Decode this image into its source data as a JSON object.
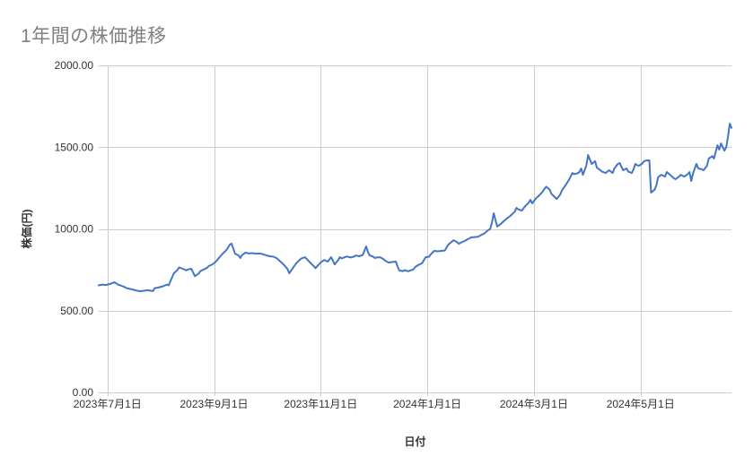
{
  "colors": {
    "background": "#ffffff",
    "title_text": "#808080",
    "axis_text": "#333333",
    "gridline": "#cccccc",
    "series_line": "#4575c6"
  },
  "chart_data": {
    "type": "line",
    "title": "1年間の株価推移",
    "xlabel": "日付",
    "ylabel": "株価(円)",
    "legend": "none",
    "grid": true,
    "ylim": [
      0,
      2000
    ],
    "y_ticks": [
      {
        "v": 0,
        "label": "0.00"
      },
      {
        "v": 500,
        "label": "500.00"
      },
      {
        "v": 1000,
        "label": "1000.00"
      },
      {
        "v": 1500,
        "label": "1500.00"
      },
      {
        "v": 2000,
        "label": "2000.00"
      }
    ],
    "x_range_days": [
      0,
      362
    ],
    "x_ticks": [
      {
        "day": 5,
        "label": "2023年7月1日"
      },
      {
        "day": 66,
        "label": "2023年9月1日"
      },
      {
        "day": 127,
        "label": "2023年11月1日"
      },
      {
        "day": 188,
        "label": "2024年1月1日"
      },
      {
        "day": 249,
        "label": "2024年3月1日"
      },
      {
        "day": 310,
        "label": "2024年5月1日"
      }
    ],
    "series": [
      {
        "name": "株価",
        "color": "#4575c6",
        "points_day_value": [
          [
            0,
            655
          ],
          [
            2,
            660
          ],
          [
            4,
            657
          ],
          [
            7,
            665
          ],
          [
            9,
            674
          ],
          [
            11,
            660
          ],
          [
            14,
            648
          ],
          [
            16,
            638
          ],
          [
            19,
            630
          ],
          [
            22,
            622
          ],
          [
            24,
            619
          ],
          [
            26,
            622
          ],
          [
            28,
            625
          ],
          [
            31,
            620
          ],
          [
            32,
            638
          ],
          [
            34,
            641
          ],
          [
            37,
            650
          ],
          [
            39,
            660
          ],
          [
            40,
            655
          ],
          [
            43,
            729
          ],
          [
            45,
            748
          ],
          [
            46,
            765
          ],
          [
            48,
            756
          ],
          [
            50,
            747
          ],
          [
            51,
            752
          ],
          [
            53,
            756
          ],
          [
            55,
            711
          ],
          [
            57,
            725
          ],
          [
            58,
            740
          ],
          [
            60,
            752
          ],
          [
            62,
            762
          ],
          [
            63,
            773
          ],
          [
            65,
            783
          ],
          [
            67,
            800
          ],
          [
            69,
            825
          ],
          [
            71,
            850
          ],
          [
            73,
            870
          ],
          [
            75,
            904
          ],
          [
            76,
            910
          ],
          [
            78,
            849
          ],
          [
            80,
            838
          ],
          [
            81,
            822
          ],
          [
            82,
            840
          ],
          [
            84,
            855
          ],
          [
            86,
            850
          ],
          [
            88,
            852
          ],
          [
            90,
            848
          ],
          [
            92,
            850
          ],
          [
            94,
            845
          ],
          [
            96,
            838
          ],
          [
            98,
            833
          ],
          [
            100,
            830
          ],
          [
            102,
            820
          ],
          [
            104,
            800
          ],
          [
            106,
            780
          ],
          [
            108,
            755
          ],
          [
            109,
            729
          ],
          [
            111,
            760
          ],
          [
            113,
            790
          ],
          [
            115,
            811
          ],
          [
            116,
            820
          ],
          [
            118,
            827
          ],
          [
            120,
            805
          ],
          [
            122,
            783
          ],
          [
            123,
            773
          ],
          [
            124,
            760
          ],
          [
            126,
            783
          ],
          [
            127,
            795
          ],
          [
            129,
            810
          ],
          [
            131,
            800
          ],
          [
            133,
            827
          ],
          [
            134,
            805
          ],
          [
            135,
            783
          ],
          [
            137,
            810
          ],
          [
            138,
            827
          ],
          [
            139,
            820
          ],
          [
            141,
            828
          ],
          [
            142,
            832
          ],
          [
            144,
            825
          ],
          [
            146,
            830
          ],
          [
            147,
            838
          ],
          [
            149,
            833
          ],
          [
            151,
            840
          ],
          [
            153,
            893
          ],
          [
            154,
            860
          ],
          [
            155,
            838
          ],
          [
            157,
            830
          ],
          [
            158,
            822
          ],
          [
            159,
            825
          ],
          [
            161,
            827
          ],
          [
            163,
            815
          ],
          [
            164,
            805
          ],
          [
            166,
            794
          ],
          [
            168,
            798
          ],
          [
            170,
            800
          ],
          [
            171,
            770
          ],
          [
            172,
            745
          ],
          [
            174,
            742
          ],
          [
            175,
            748
          ],
          [
            177,
            741
          ],
          [
            178,
            745
          ],
          [
            180,
            752
          ],
          [
            181,
            767
          ],
          [
            183,
            780
          ],
          [
            185,
            790
          ],
          [
            187,
            827
          ],
          [
            189,
            830
          ],
          [
            190,
            845
          ],
          [
            192,
            866
          ],
          [
            194,
            863
          ],
          [
            196,
            866
          ],
          [
            198,
            868
          ],
          [
            200,
            904
          ],
          [
            203,
            931
          ],
          [
            205,
            920
          ],
          [
            206,
            909
          ],
          [
            207,
            915
          ],
          [
            208,
            920
          ],
          [
            210,
            930
          ],
          [
            211,
            937
          ],
          [
            212,
            942
          ],
          [
            213,
            948
          ],
          [
            215,
            950
          ],
          [
            217,
            952
          ],
          [
            219,
            964
          ],
          [
            221,
            975
          ],
          [
            222,
            986
          ],
          [
            224,
            1000
          ],
          [
            225,
            1040
          ],
          [
            226,
            1096
          ],
          [
            228,
            1014
          ],
          [
            229,
            1022
          ],
          [
            230,
            1030
          ],
          [
            232,
            1050
          ],
          [
            234,
            1068
          ],
          [
            235,
            1075
          ],
          [
            236,
            1085
          ],
          [
            238,
            1105
          ],
          [
            239,
            1129
          ],
          [
            240,
            1120
          ],
          [
            242,
            1112
          ],
          [
            243,
            1125
          ],
          [
            244,
            1140
          ],
          [
            246,
            1160
          ],
          [
            247,
            1178
          ],
          [
            248,
            1156
          ],
          [
            250,
            1185
          ],
          [
            252,
            1205
          ],
          [
            254,
            1228
          ],
          [
            255,
            1245
          ],
          [
            256,
            1258
          ],
          [
            258,
            1240
          ],
          [
            259,
            1215
          ],
          [
            261,
            1194
          ],
          [
            262,
            1183
          ],
          [
            264,
            1210
          ],
          [
            265,
            1235
          ],
          [
            267,
            1266
          ],
          [
            269,
            1300
          ],
          [
            271,
            1342
          ],
          [
            272,
            1335
          ],
          [
            274,
            1340
          ],
          [
            275,
            1348
          ],
          [
            276,
            1370
          ],
          [
            277,
            1331
          ],
          [
            279,
            1390
          ],
          [
            280,
            1452
          ],
          [
            282,
            1397
          ],
          [
            283,
            1405
          ],
          [
            284,
            1414
          ],
          [
            285,
            1375
          ],
          [
            287,
            1359
          ],
          [
            288,
            1350
          ],
          [
            290,
            1342
          ],
          [
            292,
            1359
          ],
          [
            294,
            1342
          ],
          [
            295,
            1370
          ],
          [
            297,
            1397
          ],
          [
            298,
            1403
          ],
          [
            300,
            1359
          ],
          [
            302,
            1370
          ],
          [
            303,
            1350
          ],
          [
            305,
            1342
          ],
          [
            306,
            1365
          ],
          [
            307,
            1397
          ],
          [
            308,
            1390
          ],
          [
            309,
            1386
          ],
          [
            311,
            1400
          ],
          [
            312,
            1414
          ],
          [
            314,
            1419
          ],
          [
            315,
            1419
          ],
          [
            316,
            1222
          ],
          [
            318,
            1240
          ],
          [
            319,
            1266
          ],
          [
            320,
            1315
          ],
          [
            321,
            1325
          ],
          [
            322,
            1331
          ],
          [
            324,
            1320
          ],
          [
            325,
            1348
          ],
          [
            327,
            1330
          ],
          [
            328,
            1320
          ],
          [
            329,
            1310
          ],
          [
            330,
            1304
          ],
          [
            332,
            1320
          ],
          [
            333,
            1331
          ],
          [
            334,
            1325
          ],
          [
            335,
            1320
          ],
          [
            337,
            1335
          ],
          [
            338,
            1348
          ],
          [
            339,
            1293
          ],
          [
            340,
            1340
          ],
          [
            342,
            1397
          ],
          [
            343,
            1370
          ],
          [
            345,
            1365
          ],
          [
            346,
            1359
          ],
          [
            348,
            1386
          ],
          [
            349,
            1430
          ],
          [
            351,
            1445
          ],
          [
            352,
            1430
          ],
          [
            354,
            1512
          ],
          [
            355,
            1485
          ],
          [
            356,
            1523
          ],
          [
            358,
            1479
          ],
          [
            359,
            1500
          ],
          [
            360,
            1562
          ],
          [
            361,
            1644
          ],
          [
            362,
            1618
          ]
        ]
      }
    ]
  }
}
